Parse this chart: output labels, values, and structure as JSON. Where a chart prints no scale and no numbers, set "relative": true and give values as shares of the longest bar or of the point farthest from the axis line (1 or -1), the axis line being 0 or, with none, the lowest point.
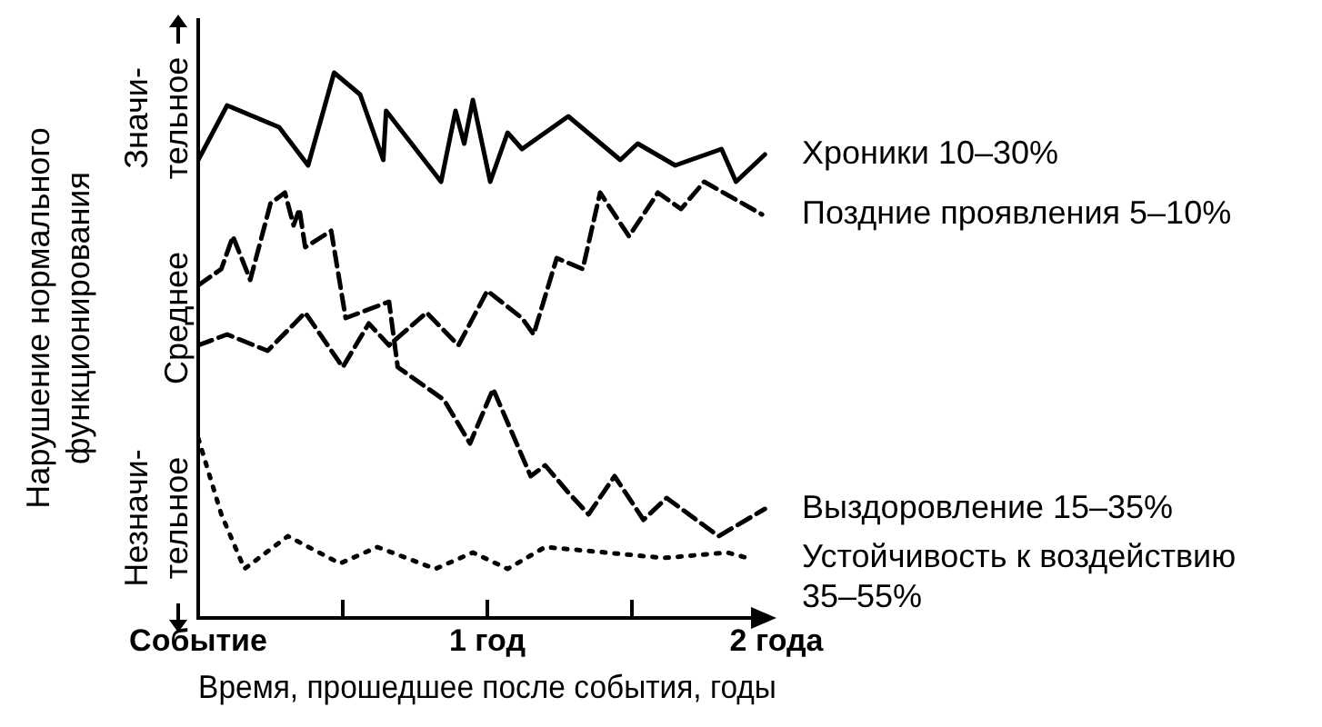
{
  "chart_data": {
    "type": "line",
    "relative": true,
    "xlabel": "Время, прошедшее после события, годы",
    "ylabel": "Нарушение нормального функционирования",
    "annotations": [
      "Незначи-тельное",
      "Среднее",
      "Значи-тельное"
    ],
    "xlim": [
      0,
      2
    ],
    "xticks": [
      {
        "value": 0,
        "label": "Событие"
      },
      {
        "value": 0.5,
        "label": null
      },
      {
        "value": 1,
        "label": "1 год"
      },
      {
        "value": 1.5,
        "label": null
      },
      {
        "value": 2,
        "label": "2 года"
      }
    ],
    "legend": false,
    "marker": "none",
    "series": [
      {
        "name": "Хроники 10–30%",
        "color": "#000000",
        "line_style": "solid",
        "x": [
          0,
          0.1,
          0.28,
          0.38,
          0.47,
          0.56,
          0.64,
          0.65,
          0.84,
          0.89,
          0.92,
          0.95,
          1.01,
          1.07,
          1.12,
          1.28,
          1.46,
          1.52,
          1.65,
          1.81,
          1.86,
          1.96
        ],
        "values": [
          0.84,
          0.94,
          0.9,
          0.83,
          1.0,
          0.96,
          0.84,
          0.93,
          0.8,
          0.93,
          0.87,
          0.95,
          0.8,
          0.89,
          0.86,
          0.92,
          0.84,
          0.87,
          0.83,
          0.86,
          0.8,
          0.85
        ]
      },
      {
        "name": "Поздние проявления 5–10%",
        "color": "#000000",
        "line_style": "dashed",
        "x": [
          0,
          0.1,
          0.24,
          0.37,
          0.5,
          0.59,
          0.66,
          0.79,
          0.9,
          1.0,
          1.12,
          1.16,
          1.24,
          1.33,
          1.39,
          1.49,
          1.59,
          1.67,
          1.75,
          1.95
        ],
        "values": [
          0.5,
          0.52,
          0.49,
          0.56,
          0.46,
          0.54,
          0.5,
          0.56,
          0.5,
          0.6,
          0.55,
          0.52,
          0.66,
          0.64,
          0.78,
          0.7,
          0.78,
          0.75,
          0.8,
          0.74
        ]
      },
      {
        "name": "Выздоровление 15–35%",
        "color": "#000000",
        "line_style": "dashed",
        "x": [
          0,
          0.08,
          0.12,
          0.18,
          0.25,
          0.3,
          0.33,
          0.35,
          0.37,
          0.46,
          0.51,
          0.66,
          0.69,
          0.85,
          0.94,
          1.02,
          1.15,
          1.2,
          1.28,
          1.35,
          1.44,
          1.54,
          1.62,
          1.8,
          1.96
        ],
        "values": [
          0.61,
          0.64,
          0.7,
          0.62,
          0.76,
          0.78,
          0.72,
          0.75,
          0.68,
          0.71,
          0.55,
          0.58,
          0.46,
          0.4,
          0.32,
          0.42,
          0.26,
          0.28,
          0.23,
          0.19,
          0.26,
          0.18,
          0.22,
          0.15,
          0.2
        ]
      },
      {
        "name": "Устойчивость к воздействию 35–55%",
        "color": "#000000",
        "line_style": "dotted",
        "x": [
          0,
          0.08,
          0.16,
          0.31,
          0.49,
          0.62,
          0.82,
          0.95,
          1.07,
          1.2,
          1.41,
          1.61,
          1.83,
          1.9
        ],
        "values": [
          0.33,
          0.19,
          0.09,
          0.15,
          0.1,
          0.13,
          0.09,
          0.12,
          0.09,
          0.13,
          0.12,
          0.11,
          0.12,
          0.11
        ]
      }
    ]
  }
}
